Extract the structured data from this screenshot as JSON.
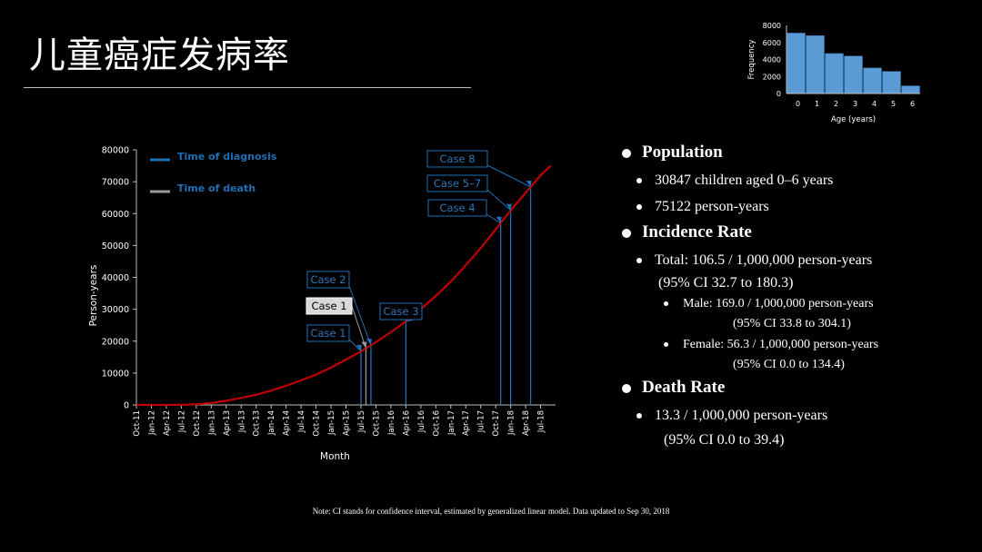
{
  "slide": {
    "title": "儿童癌症发病率",
    "note": "Note: CI stands for confidence interval, estimated by generalized linear model. Data updated to Sep 30, 2018"
  },
  "stats": {
    "population_heading": "Population",
    "population_items": [
      "30847 children aged  0–6 years",
      "75122 person-years"
    ],
    "incidence_heading": "Incidence Rate",
    "total_line1": "Total:  106.5 / 1,000,000 person-years",
    "total_line2": "(95% CI  32.7 to 180.3)",
    "male_line1": "Male:  169.0 / 1,000,000 person-years",
    "male_line2": "(95% CI 33.8 to 304.1)",
    "female_line1": "Female:  56.3 / 1,000,000 person-years",
    "female_line2": "(95% CI 0.0 to 134.4)",
    "death_heading": "Death Rate",
    "death_line1": "13.3 / 1,000,000 person-years",
    "death_line2": "(95% CI   0.0 to 39.4)"
  },
  "chart_data": [
    {
      "type": "line",
      "xlabel": "Month",
      "ylabel": "Person-years",
      "ylim": [
        0,
        80000
      ],
      "yticks": [
        0,
        10000,
        20000,
        30000,
        40000,
        50000,
        60000,
        70000,
        80000
      ],
      "xlim": [
        "Oct-11",
        "Oct-18"
      ],
      "x_tick_labels": [
        "Oct-11",
        "Jan-12",
        "Apr-12",
        "Jul-12",
        "Oct-12",
        "Jan-13",
        "Apr-13",
        "Jul-13",
        "Oct-13",
        "Jan-14",
        "Apr-14",
        "Jul-14",
        "Oct-14",
        "Jan-15",
        "Apr-15",
        "Jul-15",
        "Oct-15",
        "Jan-16",
        "Apr-16",
        "Jul-16",
        "Oct-16",
        "Jan-17",
        "Apr-17",
        "Jul-17",
        "Oct-17",
        "Jan-18",
        "Apr-18",
        "Jul-18"
      ],
      "line_color": "#c00000",
      "series": [
        {
          "name": "",
          "x": [
            "Oct-11",
            "Jan-12",
            "Apr-12",
            "Jul-12",
            "Oct-12",
            "Jan-13",
            "Apr-13",
            "Jul-13",
            "Oct-13",
            "Jan-14",
            "Apr-14",
            "Jul-14",
            "Oct-14",
            "Jan-15",
            "Apr-15",
            "Jul-15",
            "Oct-15",
            "Jan-16",
            "Apr-16",
            "Jul-16",
            "Oct-16",
            "Jan-17",
            "Apr-17",
            "Jul-17",
            "Oct-17",
            "Jan-18",
            "Apr-18",
            "Jul-18",
            "Sep-18"
          ],
          "values": [
            0,
            0,
            0,
            50,
            200,
            600,
            1300,
            2200,
            3200,
            4500,
            6000,
            7700,
            9500,
            11700,
            14200,
            16800,
            19700,
            22800,
            26200,
            30000,
            34200,
            38700,
            43800,
            49200,
            55000,
            61000,
            66500,
            72000,
            75000
          ]
        }
      ],
      "legend": [
        {
          "label": "Time of diagnosis",
          "color": "#1f6fb5"
        },
        {
          "label": "Time of death",
          "color": "#9a9a9a"
        }
      ],
      "legend_placement": "top-left",
      "events": [
        {
          "label": "Case 1",
          "kind": "diagnosis",
          "month": "Jul-15"
        },
        {
          "label": "Case 1",
          "kind": "death",
          "month": "Aug-15"
        },
        {
          "label": "Case 2",
          "kind": "diagnosis",
          "month": "Sep-15"
        },
        {
          "label": "Case 3",
          "kind": "diagnosis",
          "month": "Apr-16"
        },
        {
          "label": "Case 4",
          "kind": "diagnosis",
          "month": "Nov-17"
        },
        {
          "label": "Case 5–7",
          "kind": "diagnosis",
          "month": "Jan-18"
        },
        {
          "label": "Case 8",
          "kind": "diagnosis",
          "month": "May-18"
        }
      ]
    },
    {
      "type": "bar",
      "xlabel": "Age (years)",
      "ylabel": "Frequency",
      "categories": [
        "0",
        "1",
        "2",
        "3",
        "4",
        "5",
        "6"
      ],
      "values": [
        7100,
        6800,
        4700,
        4400,
        3000,
        2600,
        900
      ],
      "ylim": [
        0,
        8000
      ],
      "yticks": [
        0,
        2000,
        4000,
        6000,
        8000
      ],
      "bar_color": "#5b9bd5"
    }
  ]
}
